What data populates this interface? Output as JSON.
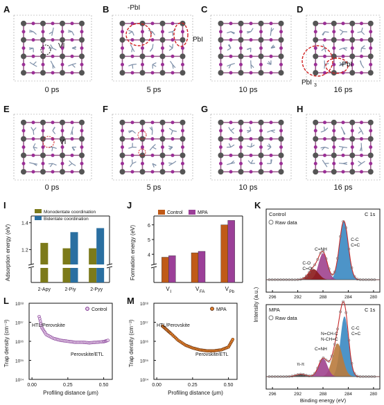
{
  "panels": {
    "letters": [
      "A",
      "B",
      "C",
      "D",
      "E",
      "F",
      "G",
      "H",
      "I",
      "J",
      "K",
      "L",
      "M"
    ],
    "top_times": [
      "0 ps",
      "5 ps",
      "10 ps",
      "16 ps"
    ],
    "bottom_times": [
      "0 ps",
      "5 ps",
      "10 ps",
      "16 ps"
    ],
    "A_annot": "VI",
    "B_annot1": "-PbI",
    "B_annot2": "PbI",
    "D_annot1": "-PbI",
    "D_annot2": "PbI",
    "D_annot2_sub": "3",
    "E_annot": "VI"
  },
  "colors": {
    "olive": "#7c7a1a",
    "blue": "#2a6fa1",
    "orange": "#c05a17",
    "purple": "#9b3f98",
    "dark_red": "#8b1a1a",
    "mauve": "#a0428e",
    "brown": "#b97a3c",
    "light_blue": "#3a88c2",
    "dash_red": "#d02020"
  },
  "chart_data": [
    {
      "id": "I",
      "type": "bar",
      "ylabel": "Adsorption energy (eV)",
      "categories": [
        "2-Apy",
        "2-Piy",
        "2-Pyy"
      ],
      "series": [
        {
          "name": "Monodentate coordination",
          "values": [
            1.25,
            1.21,
            1.21
          ]
        },
        {
          "name": "Bidentate coordination",
          "values": [
            null,
            1.33,
            1.36
          ]
        }
      ],
      "yticks": [
        "1.2",
        "1.4"
      ],
      "ylim": [
        0,
        1.45
      ],
      "axis_break": true
    },
    {
      "id": "J",
      "type": "bar",
      "ylabel": "Formation energy (eV)",
      "categories": [
        "VI",
        "VFA",
        "VPb"
      ],
      "category_main": [
        "V",
        "V",
        "V"
      ],
      "category_sub": [
        "I",
        "FA",
        "Pb"
      ],
      "series": [
        {
          "name": "Control",
          "values": [
            3.8,
            4.1,
            6.0
          ]
        },
        {
          "name": "MPA",
          "values": [
            3.9,
            4.2,
            6.3
          ]
        }
      ],
      "yticks": [
        "4",
        "5",
        "6"
      ],
      "ylim": [
        3,
        6.6
      ],
      "axis_break": true
    },
    {
      "id": "K",
      "type": "line",
      "ylabel": "Intensity (a.u.)",
      "xlabel": "Binding energy (eV)",
      "xticks": [
        "296",
        "292",
        "288",
        "284",
        "280"
      ],
      "xlim": [
        297,
        279
      ],
      "subplots": [
        {
          "name": "Control",
          "legend": "Raw data",
          "tag": "C 1s",
          "peaks": [
            {
              "label1": "C-C",
              "label2": "C=C",
              "center": 284.7,
              "height": 1.0
            },
            {
              "label1": "C=NH",
              "center": 288.0,
              "height": 0.45
            },
            {
              "label1": "C-O",
              "label2": "C=O",
              "center": 289.5,
              "height": 0.18
            }
          ]
        },
        {
          "name": "MPA",
          "legend": "Raw data",
          "tag": "C 1s",
          "peaks": [
            {
              "label1": "C-C",
              "label2": "C=C",
              "center": 284.6,
              "height": 1.0
            },
            {
              "label1": "N=CH-C",
              "label2": "N-CH=C",
              "center": 285.7,
              "height": 0.55
            },
            {
              "label1": "C=NH",
              "center": 288.0,
              "height": 0.3
            },
            {
              "label1": "π-π",
              "center": 291.5,
              "height": 0.04
            }
          ]
        }
      ]
    },
    {
      "id": "L",
      "type": "scatter",
      "ylabel": "Trap density (cm⁻³)",
      "xlabel": "Profiling distance (μm)",
      "legend": "Control",
      "yticks": [
        "10¹⁴",
        "10¹⁵",
        "10¹⁶",
        "10¹⁷",
        "10¹⁸"
      ],
      "xticks": [
        "0.00",
        "0.25",
        "0.50"
      ],
      "annotations": [
        "HTL/Perovskite",
        "Perovskite/ETL"
      ],
      "x": [
        0.05,
        0.07,
        0.1,
        0.15,
        0.2,
        0.25,
        0.3,
        0.35,
        0.4,
        0.45,
        0.5,
        0.53
      ],
      "y": [
        17.3,
        16.7,
        16.35,
        16.15,
        16.05,
        16.0,
        15.95,
        15.95,
        15.92,
        15.95,
        15.98,
        16.05
      ]
    },
    {
      "id": "M",
      "type": "scatter",
      "ylabel": "Trap density (cm⁻³)",
      "xlabel": "Profiling distance (μm)",
      "legend": "MPA",
      "yticks": [
        "10¹⁴",
        "10¹⁵",
        "10¹⁶",
        "10¹⁷",
        "10¹⁸"
      ],
      "xticks": [
        "0.00",
        "0.25",
        "0.50"
      ],
      "annotations": [
        "HTL/Perovskite",
        "Perovskite/ETL"
      ],
      "x": [
        0.04,
        0.07,
        0.1,
        0.15,
        0.2,
        0.25,
        0.3,
        0.35,
        0.4,
        0.45,
        0.5,
        0.53
      ],
      "y": [
        16.8,
        16.6,
        16.4,
        16.05,
        15.8,
        15.65,
        15.55,
        15.5,
        15.5,
        15.55,
        15.7,
        16.1
      ]
    }
  ],
  "text": {
    "I_ytick_12": "1.2",
    "I_ytick_14": "1.4",
    "I_legend1": "Monodentate coordination",
    "I_legend2": "Bidentate coordination",
    "J_legend1": "Control",
    "J_legend2": "MPA",
    "K_control": "Control",
    "K_mpa": "MPA",
    "K_raw": "Raw data",
    "K_c1s": "C 1s",
    "L_legend": "Control",
    "M_legend": "MPA",
    "trap_label": "Trap density (cm⁻³)",
    "prof_label": "Profiling distance (μm)",
    "htl": "HTL/Perovskite",
    "etl": "Perovskite/ETL",
    "binding": "Binding energy (eV)",
    "intensity": "Intensity (a.u.)"
  }
}
